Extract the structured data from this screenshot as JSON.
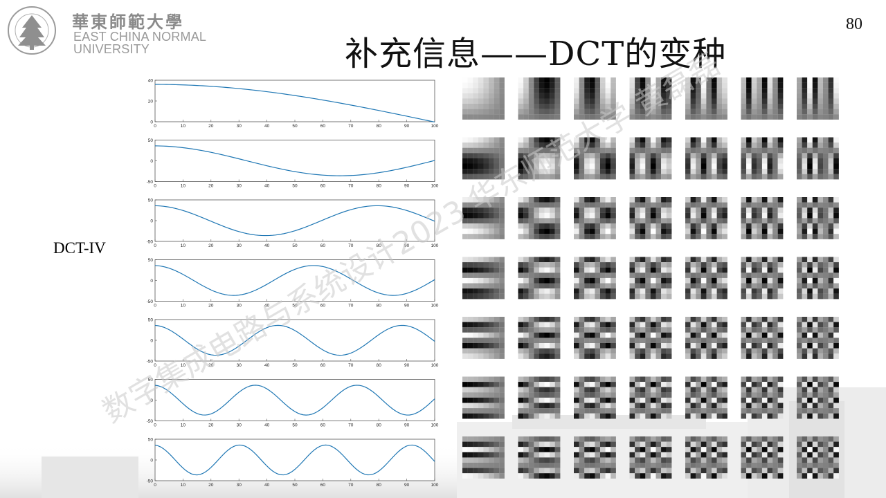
{
  "header": {
    "logo_cn": "華東師範大學",
    "logo_en_line1": "EAST CHINA NORMAL",
    "logo_en_line2": "UNIVERSITY",
    "seal_text": "EAST CHINA NORMAL UNIVERSITY"
  },
  "page_number": "80",
  "slide_title": "补充信息——DCT的变种",
  "side_label": "DCT-IV",
  "watermark": "数字集成电路与系统设计2023 华东师范大学 黄磊磊",
  "colors": {
    "curve": "#1f77b4",
    "text": "#111111",
    "logo": "#8a8a8a"
  },
  "chart_data": [
    {
      "type": "line",
      "series": [
        {
          "k": 0
        }
      ],
      "x": [
        0,
        10,
        20,
        30,
        40,
        50,
        60,
        70,
        80,
        90,
        100
      ],
      "xlim": [
        0,
        100
      ],
      "ylim": [
        0,
        40
      ],
      "yticks": [
        0,
        20,
        40
      ],
      "xticks": [
        0,
        10,
        20,
        30,
        40,
        50,
        60,
        70,
        80,
        90,
        100
      ],
      "amplitude": 36
    },
    {
      "type": "line",
      "series": [
        {
          "k": 1
        }
      ],
      "x": [
        0,
        10,
        20,
        30,
        40,
        50,
        60,
        70,
        80,
        90,
        100
      ],
      "xlim": [
        0,
        100
      ],
      "ylim": [
        -50,
        50
      ],
      "yticks": [
        -50,
        0,
        50
      ],
      "xticks": [
        0,
        10,
        20,
        30,
        40,
        50,
        60,
        70,
        80,
        90,
        100
      ],
      "amplitude": 36
    },
    {
      "type": "line",
      "series": [
        {
          "k": 2
        }
      ],
      "x": [
        0,
        10,
        20,
        30,
        40,
        50,
        60,
        70,
        80,
        90,
        100
      ],
      "xlim": [
        0,
        100
      ],
      "ylim": [
        -50,
        50
      ],
      "yticks": [
        -50,
        0,
        50
      ],
      "xticks": [
        0,
        10,
        20,
        30,
        40,
        50,
        60,
        70,
        80,
        90,
        100
      ],
      "amplitude": 36
    },
    {
      "type": "line",
      "series": [
        {
          "k": 3
        }
      ],
      "x": [
        0,
        10,
        20,
        30,
        40,
        50,
        60,
        70,
        80,
        90,
        100
      ],
      "xlim": [
        0,
        100
      ],
      "ylim": [
        -50,
        50
      ],
      "yticks": [
        -50,
        0,
        50
      ],
      "xticks": [
        0,
        10,
        20,
        30,
        40,
        50,
        60,
        70,
        80,
        90,
        100
      ],
      "amplitude": 36
    },
    {
      "type": "line",
      "series": [
        {
          "k": 4
        }
      ],
      "x": [
        0,
        10,
        20,
        30,
        40,
        50,
        60,
        70,
        80,
        90,
        100
      ],
      "xlim": [
        0,
        100
      ],
      "ylim": [
        -50,
        50
      ],
      "yticks": [
        -50,
        0,
        50
      ],
      "xticks": [
        0,
        10,
        20,
        30,
        40,
        50,
        60,
        70,
        80,
        90,
        100
      ],
      "amplitude": 36
    },
    {
      "type": "line",
      "series": [
        {
          "k": 5
        }
      ],
      "x": [
        0,
        10,
        20,
        30,
        40,
        50,
        60,
        70,
        80,
        90,
        100
      ],
      "xlim": [
        0,
        100
      ],
      "ylim": [
        -50,
        50
      ],
      "yticks": [
        -50,
        0,
        50
      ],
      "xticks": [
        0,
        10,
        20,
        30,
        40,
        50,
        60,
        70,
        80,
        90,
        100
      ],
      "amplitude": 36
    },
    {
      "type": "line",
      "series": [
        {
          "k": 6
        }
      ],
      "x": [
        0,
        10,
        20,
        30,
        40,
        50,
        60,
        70,
        80,
        90,
        100
      ],
      "xlim": [
        0,
        100
      ],
      "ylim": [
        -50,
        50
      ],
      "yticks": [
        -50,
        0,
        50
      ],
      "xticks": [
        0,
        10,
        20,
        30,
        40,
        50,
        60,
        70,
        80,
        90,
        100
      ],
      "amplitude": 36
    }
  ],
  "basis_grid": {
    "rows": 7,
    "cols": 7,
    "block_size": 8
  }
}
